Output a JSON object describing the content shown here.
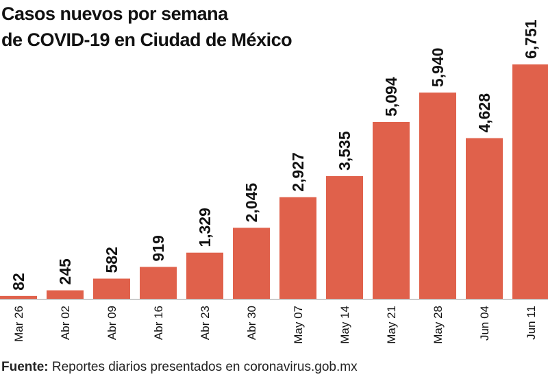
{
  "chart_data": {
    "type": "bar",
    "title": [
      "Casos nuevos por semana",
      "de COVID-19 en Ciudad de México"
    ],
    "categories": [
      "Mar 26",
      "Abr 02",
      "Abr 09",
      "Abr 16",
      "Abr 23",
      "Abr 30",
      "May 07",
      "May 14",
      "May 21",
      "May 28",
      "Jun 04",
      "Jun 11"
    ],
    "values": [
      82,
      245,
      582,
      919,
      1329,
      2045,
      2927,
      3535,
      5094,
      5940,
      4628,
      6751
    ],
    "value_labels": [
      "82",
      "245",
      "582",
      "919",
      "1,329",
      "2,045",
      "2,927",
      "3,535",
      "5,094",
      "5,940",
      "4,628",
      "6,751"
    ],
    "xlabel": "",
    "ylabel": "",
    "ylim": [
      0,
      6751
    ],
    "grid": false,
    "legend": "none",
    "colors": {
      "bar": "#e0614b",
      "baseline": "#999999"
    }
  },
  "source": {
    "label": "Fuente:",
    "text": "Reportes diarios presentados en coronavirus.gob.mx"
  }
}
